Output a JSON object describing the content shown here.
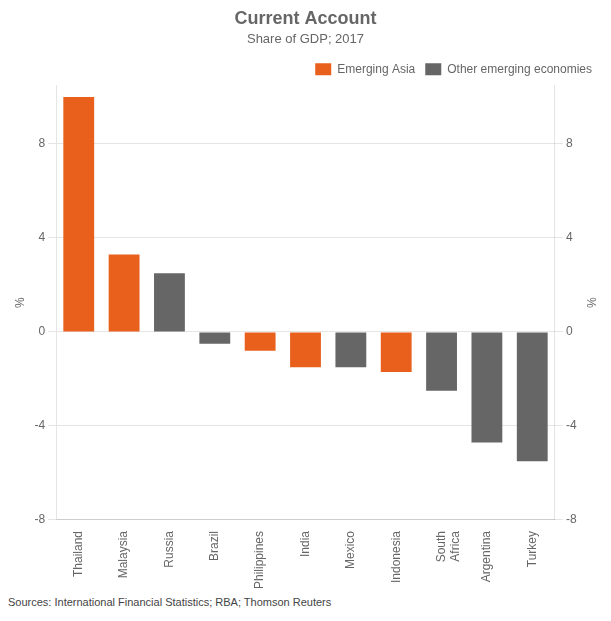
{
  "chart_data": {
    "type": "bar",
    "title": "Current Account",
    "subtitle": "Share of GDP; 2017",
    "ylabel": "%",
    "y2label": "%",
    "source": "Sources: International Financial Statistics; RBA; Thomson Reuters",
    "categories": [
      "Thailand",
      "Malaysia",
      "Russia",
      "Brazil",
      "Philippines",
      "India",
      "Mexico",
      "Indonesia",
      "South\nAfrica",
      "Argentina",
      "Turkey"
    ],
    "series": [
      {
        "name": "Emerging Asia",
        "color": "#E8601C",
        "values": [
          10.0,
          3.3,
          null,
          null,
          -0.8,
          -1.5,
          null,
          -1.7,
          null,
          null,
          null
        ]
      },
      {
        "name": "Other emerging economies",
        "color": "#666666",
        "values": [
          null,
          null,
          2.5,
          -0.5,
          null,
          null,
          -1.5,
          null,
          -2.5,
          -4.7,
          -5.5
        ]
      }
    ],
    "stacked": true,
    "ylim": [
      -8,
      10.5
    ],
    "yticks": [
      -8,
      -4,
      0,
      4,
      8
    ],
    "y2lim": [
      -8,
      10.5
    ],
    "y2ticks": [
      -8,
      -4,
      0,
      4,
      8
    ],
    "grid": true,
    "legend": "top-right"
  }
}
